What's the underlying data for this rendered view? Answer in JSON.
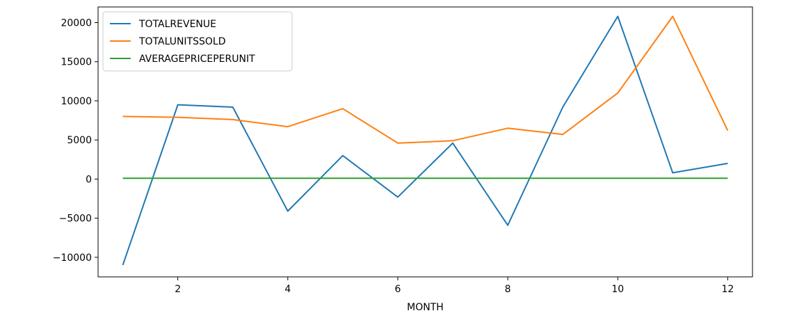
{
  "chart_data": {
    "type": "line",
    "xlabel": "MONTH",
    "ylabel": "",
    "xlim": [
      0.55,
      12.45
    ],
    "ylim": [
      -12500,
      22000
    ],
    "xticks": [
      2,
      4,
      6,
      8,
      10,
      12
    ],
    "yticks": [
      -10000,
      -5000,
      0,
      5000,
      10000,
      15000,
      20000
    ],
    "grid": false,
    "legend_position": "top-left",
    "x": [
      1,
      2,
      3,
      4,
      5,
      6,
      7,
      8,
      9,
      10,
      11,
      12
    ],
    "series": [
      {
        "name": "TOTALREVENUE",
        "color": "#1f77b4",
        "values": [
          -11000,
          9500,
          9200,
          -4100,
          3000,
          -2300,
          4600,
          -5900,
          9200,
          20800,
          800,
          2000
        ]
      },
      {
        "name": "TOTALUNITSSOLD",
        "color": "#ff7f0e",
        "values": [
          8000,
          7900,
          7600,
          6700,
          9000,
          4600,
          4900,
          6500,
          5700,
          11000,
          20800,
          6200
        ]
      },
      {
        "name": "AVERAGEPRICEPERUNIT",
        "color": "#2ca02c",
        "values": [
          100,
          100,
          100,
          100,
          100,
          100,
          100,
          100,
          100,
          100,
          100,
          100
        ]
      }
    ]
  }
}
